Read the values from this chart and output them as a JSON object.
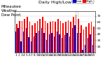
{
  "title": "Milwaukee\nWeather\nDew Point",
  "subtitle": "Daily High/Low",
  "legend_high": "High",
  "legend_low": "Low",
  "high_color": "#ff0000",
  "low_color": "#0000cc",
  "background_color": "#ffffff",
  "ytick_labels": [
    "20",
    "30",
    "40",
    "50",
    "60",
    "70"
  ],
  "yticks": [
    20,
    30,
    40,
    50,
    60,
    70
  ],
  "ylim": [
    10,
    78
  ],
  "bar_width": 0.42,
  "highs": [
    57,
    62,
    61,
    65,
    68,
    60,
    55,
    58,
    62,
    65,
    68,
    62,
    58,
    60,
    62,
    60,
    65,
    62,
    58,
    60,
    63,
    60,
    68,
    72,
    65,
    55,
    48,
    52,
    58,
    60,
    52
  ],
  "lows": [
    44,
    50,
    28,
    44,
    50,
    35,
    28,
    36,
    42,
    45,
    50,
    42,
    30,
    40,
    42,
    36,
    44,
    40,
    34,
    38,
    42,
    36,
    50,
    55,
    42,
    42,
    14,
    22,
    34,
    40,
    22
  ],
  "x_labels": [
    "1",
    "2",
    "3",
    "4",
    "5",
    "6",
    "7",
    "8",
    "9",
    "10",
    "11",
    "12",
    "13",
    "14",
    "15",
    "16",
    "17",
    "18",
    "19",
    "20",
    "21",
    "22",
    "23",
    "24",
    "25",
    "26",
    "27",
    "28",
    "29",
    "30",
    "31"
  ],
  "dotted_indices": [
    23,
    24
  ],
  "title_fontsize": 4.0,
  "tick_fontsize": 3.2,
  "legend_fontsize": 3.2
}
